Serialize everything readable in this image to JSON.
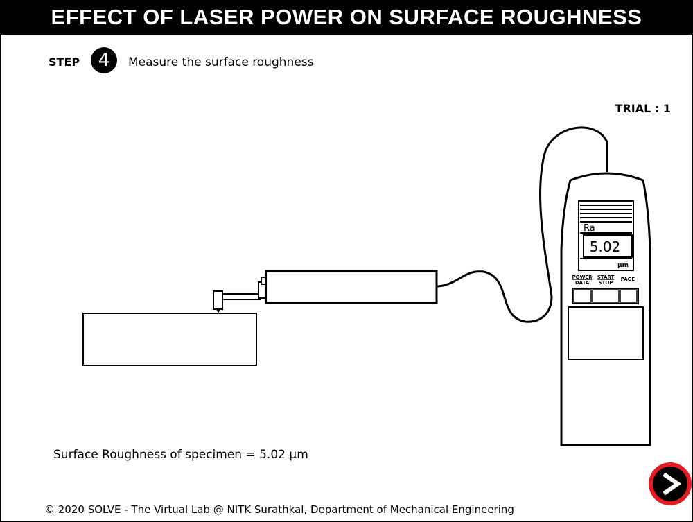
{
  "header": {
    "title": "EFFECT OF LASER POWER ON SURFACE ROUGHNESS"
  },
  "step": {
    "label": "STEP",
    "number": "4",
    "instruction": "Measure the surface roughness"
  },
  "trial": {
    "text": "TRIAL : 1"
  },
  "tester": {
    "parameter": "Ra",
    "reading": "5.02",
    "unit": "μm",
    "buttons": {
      "power_top": "POWER",
      "power_bottom": "DATA",
      "start_top": "START",
      "start_bottom": "STOP",
      "page": "PAGE"
    }
  },
  "result": {
    "text": "Surface Roughness of specimen = 5.02 μm"
  },
  "footer": {
    "text": "© 2020 SOLVE - The Virtual Lab @ NITK Surathkal, Department of Mechanical Engineering"
  },
  "icons": {
    "next": "next-arrow-icon"
  },
  "colors": {
    "next_button_ring": "#e31b23",
    "header_bg": "#000000"
  }
}
